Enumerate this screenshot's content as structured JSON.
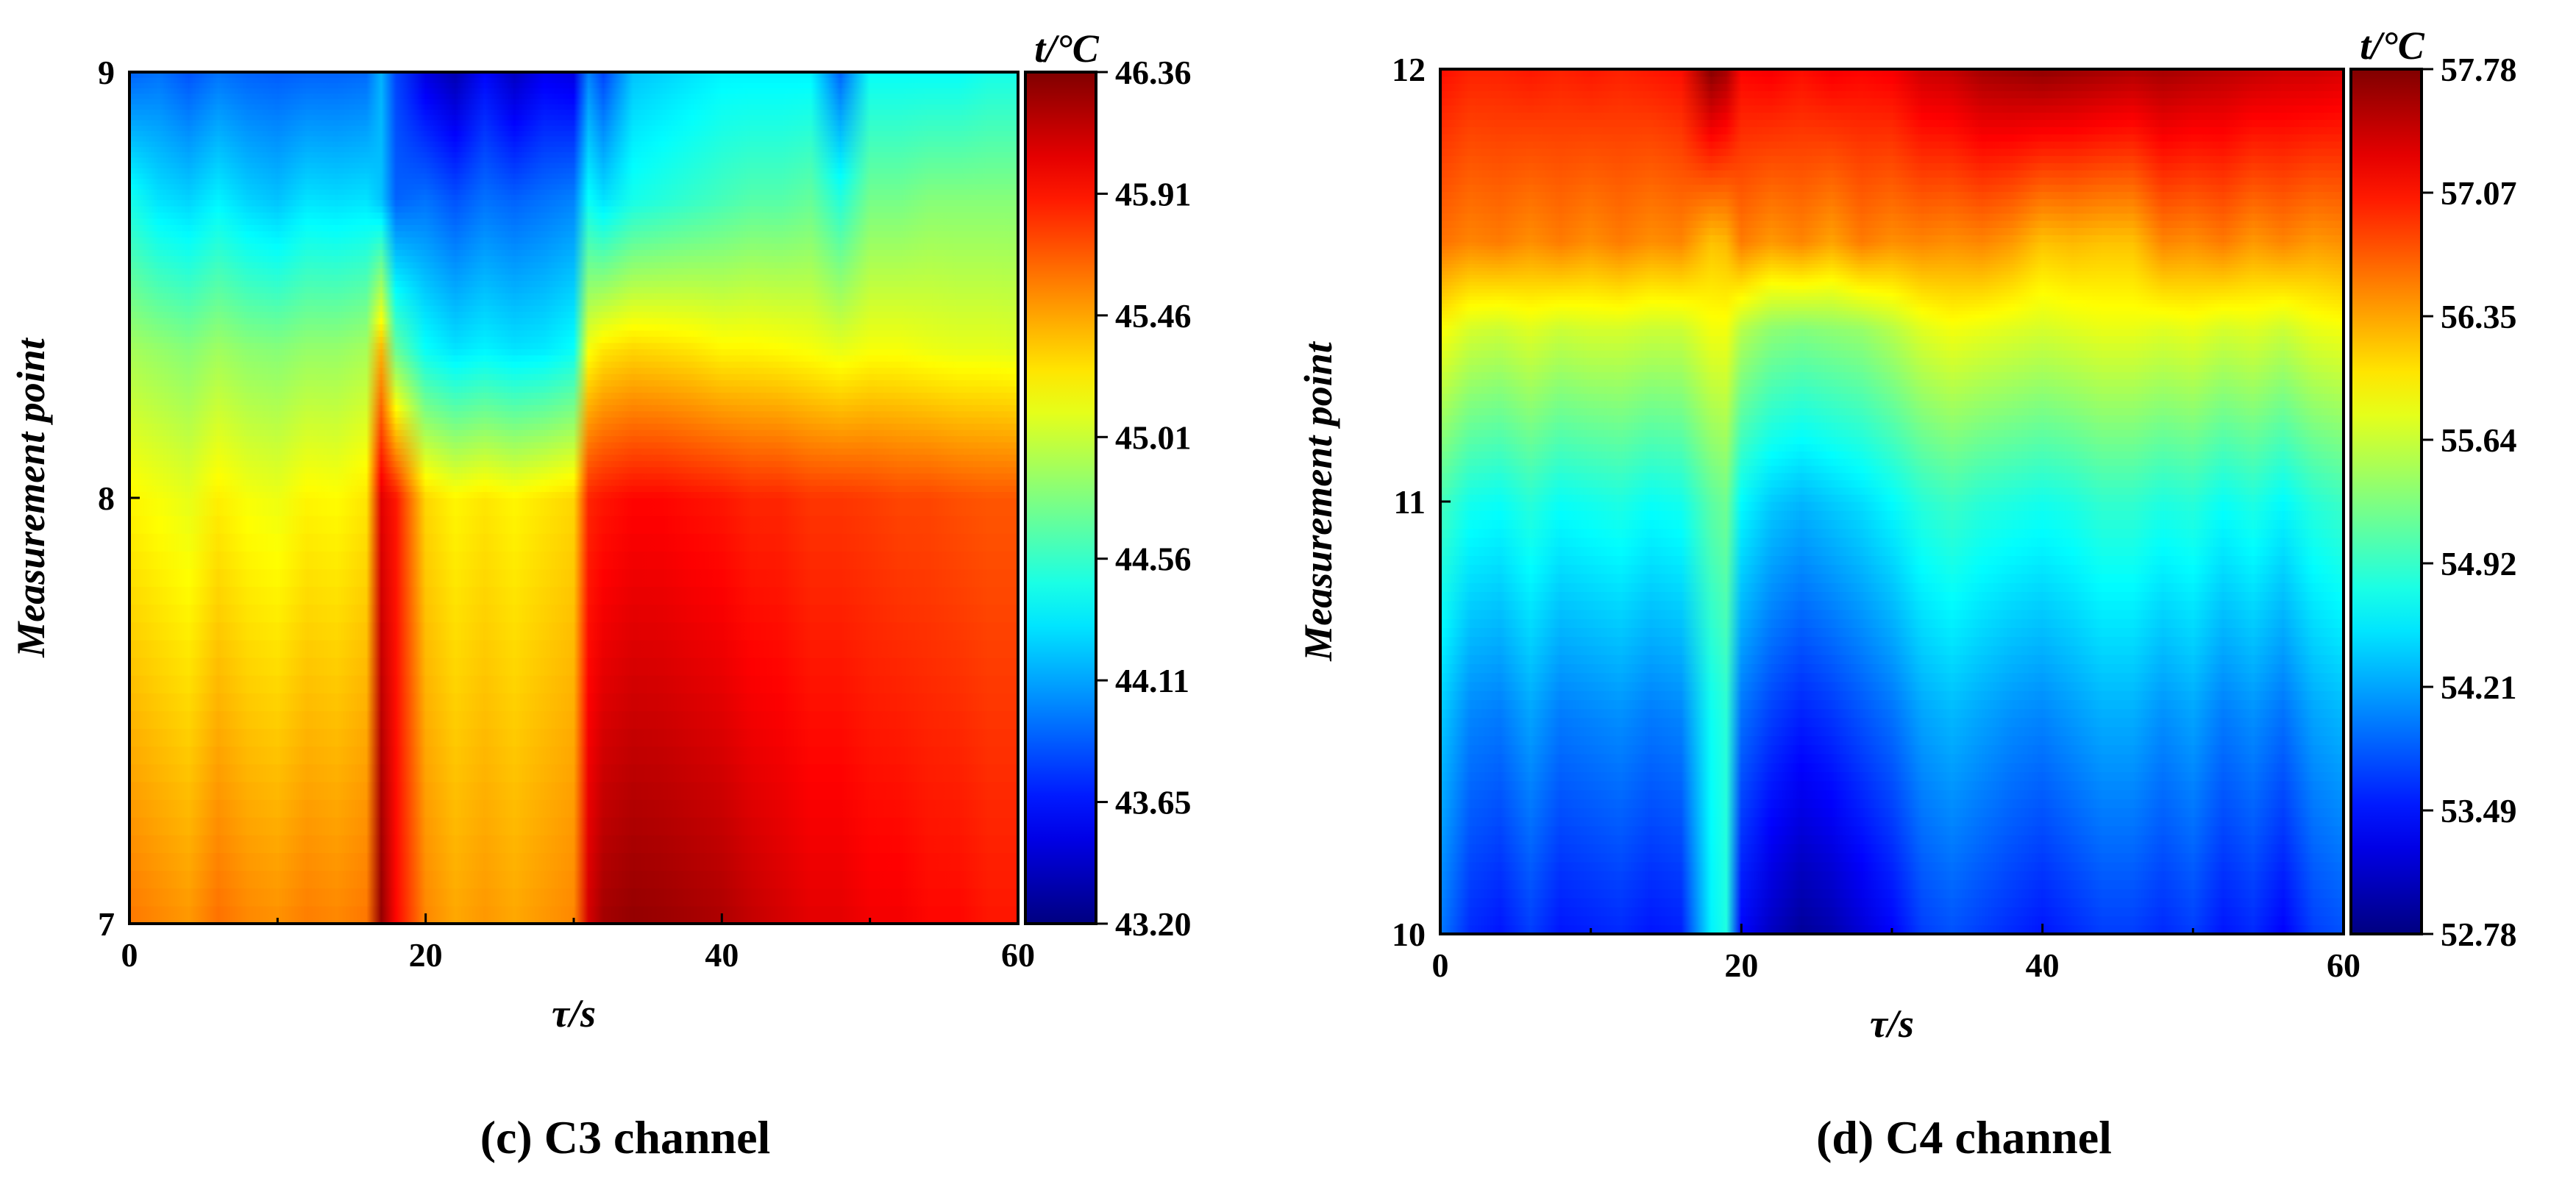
{
  "chart_data": [
    {
      "type": "heatmap",
      "panel": "c",
      "caption": "(c) C3 channel",
      "xlabel": "τ/s",
      "ylabel": "Measurement point",
      "colorbar_title": "t/°C",
      "xlim": [
        0,
        60
      ],
      "ylim": [
        7,
        9
      ],
      "x_ticks": [
        "0",
        "20",
        "40",
        "60"
      ],
      "y_ticks": [
        "7",
        "8",
        "9"
      ],
      "colorbar_ticks": [
        "46.36",
        "45.91",
        "45.46",
        "45.01",
        "44.56",
        "44.11",
        "43.65",
        "43.20"
      ],
      "vmin": 43.2,
      "vmax": 46.36,
      "x": [
        0,
        2,
        4,
        6,
        8,
        10,
        12,
        14,
        16,
        17,
        18,
        20,
        22,
        24,
        26,
        28,
        30,
        31,
        32,
        34,
        36,
        38,
        40,
        42,
        44,
        46,
        48,
        50,
        52,
        54,
        56,
        58,
        60
      ],
      "y": [
        7,
        8,
        8.35,
        8.7,
        9
      ],
      "values": [
        [
          45.6,
          45.55,
          45.5,
          45.62,
          45.55,
          45.52,
          45.58,
          45.55,
          45.6,
          46.3,
          45.95,
          45.55,
          45.45,
          45.5,
          45.45,
          45.5,
          45.55,
          46.1,
          46.25,
          46.3,
          46.28,
          46.25,
          46.22,
          46.15,
          46.1,
          46.05,
          46.05,
          46.0,
          46.0,
          45.95,
          45.95,
          45.9,
          45.9
        ],
        [
          45.2,
          45.15,
          45.1,
          45.22,
          45.15,
          45.12,
          45.2,
          45.18,
          45.25,
          46.05,
          45.9,
          45.3,
          45.2,
          45.25,
          45.2,
          45.25,
          45.3,
          45.85,
          45.9,
          45.95,
          45.95,
          45.92,
          45.9,
          45.85,
          45.85,
          45.8,
          45.8,
          45.78,
          45.75,
          45.75,
          45.72,
          45.7,
          45.7
        ],
        [
          44.9,
          44.85,
          44.8,
          44.88,
          44.82,
          44.8,
          44.85,
          44.85,
          44.9,
          45.4,
          44.7,
          44.4,
          44.3,
          44.35,
          44.3,
          44.32,
          44.4,
          45.15,
          45.25,
          45.3,
          45.28,
          45.25,
          45.2,
          45.2,
          45.18,
          45.15,
          45.1,
          45.15,
          45.15,
          45.12,
          45.1,
          45.1,
          45.08
        ],
        [
          44.45,
          44.3,
          44.25,
          44.35,
          44.25,
          44.2,
          44.3,
          44.28,
          44.3,
          44.2,
          43.9,
          43.95,
          43.85,
          43.95,
          43.9,
          43.95,
          44.0,
          44.4,
          44.3,
          44.45,
          44.5,
          44.55,
          44.6,
          44.65,
          44.65,
          44.7,
          44.5,
          44.75,
          44.75,
          44.8,
          44.8,
          44.8,
          44.8
        ],
        [
          43.9,
          43.95,
          43.85,
          43.95,
          43.9,
          43.88,
          43.9,
          43.9,
          43.92,
          44.15,
          43.8,
          43.5,
          43.35,
          43.6,
          43.4,
          43.55,
          43.5,
          44.0,
          43.8,
          44.2,
          44.25,
          44.3,
          44.35,
          44.35,
          44.35,
          44.35,
          43.9,
          44.4,
          44.4,
          44.4,
          44.4,
          44.45,
          44.45
        ]
      ]
    },
    {
      "type": "heatmap",
      "panel": "d",
      "caption": "(d) C4 channel",
      "xlabel": "τ/s",
      "ylabel": "Measurement point",
      "colorbar_title": "t/°C",
      "xlim": [
        0,
        60
      ],
      "ylim": [
        10,
        12
      ],
      "x_ticks": [
        "0",
        "20",
        "40",
        "60"
      ],
      "y_ticks": [
        "10",
        "11",
        "12"
      ],
      "colorbar_ticks": [
        "57.78",
        "57.07",
        "56.35",
        "55.64",
        "54.92",
        "54.21",
        "53.49",
        "52.78"
      ],
      "vmin": 52.78,
      "vmax": 57.78,
      "x": [
        0,
        2,
        4,
        6,
        8,
        10,
        12,
        14,
        16,
        18,
        19,
        20,
        22,
        24,
        26,
        28,
        30,
        32,
        34,
        36,
        38,
        40,
        42,
        44,
        46,
        48,
        50,
        52,
        54,
        56,
        58,
        60
      ],
      "y": [
        10,
        10.5,
        11,
        11.4,
        11.6,
        12
      ],
      "values": [
        [
          54.0,
          53.6,
          53.5,
          53.7,
          53.5,
          53.55,
          53.6,
          53.5,
          53.55,
          54.6,
          54.8,
          53.4,
          53.1,
          52.9,
          53.0,
          53.2,
          53.4,
          53.7,
          53.8,
          53.7,
          53.6,
          53.5,
          53.6,
          53.7,
          53.7,
          53.6,
          53.7,
          53.5,
          53.6,
          53.4,
          53.7,
          53.8
        ],
        [
          54.4,
          54.05,
          54.0,
          54.2,
          54.0,
          54.05,
          54.1,
          54.0,
          54.05,
          54.7,
          54.85,
          53.95,
          53.7,
          53.55,
          53.65,
          53.8,
          53.95,
          54.2,
          54.3,
          54.2,
          54.1,
          54.05,
          54.15,
          54.25,
          54.25,
          54.1,
          54.2,
          54.0,
          54.1,
          53.95,
          54.2,
          54.3
        ],
        [
          55.0,
          54.75,
          54.7,
          54.85,
          54.7,
          54.75,
          54.8,
          54.7,
          54.75,
          55.1,
          55.2,
          54.65,
          54.4,
          54.3,
          54.4,
          54.5,
          54.65,
          54.85,
          54.95,
          54.85,
          54.8,
          54.75,
          54.8,
          54.9,
          54.9,
          54.8,
          54.85,
          54.7,
          54.8,
          54.65,
          54.85,
          54.95
        ],
        [
          55.9,
          55.7,
          55.65,
          55.75,
          55.65,
          55.7,
          55.7,
          55.65,
          55.65,
          55.85,
          55.85,
          55.55,
          55.35,
          55.3,
          55.35,
          55.4,
          55.55,
          55.75,
          55.85,
          55.8,
          55.75,
          55.7,
          55.75,
          55.8,
          55.8,
          55.75,
          55.8,
          55.7,
          55.75,
          55.65,
          55.8,
          55.85
        ],
        [
          56.6,
          56.5,
          56.55,
          56.45,
          56.55,
          56.45,
          56.55,
          56.45,
          56.5,
          56.2,
          56.25,
          56.55,
          56.4,
          56.5,
          56.35,
          56.55,
          56.45,
          56.5,
          56.45,
          56.5,
          56.4,
          56.2,
          56.25,
          56.2,
          56.2,
          56.5,
          56.45,
          56.55,
          56.4,
          56.5,
          56.4,
          56.45
        ],
        [
          57.1,
          57.0,
          57.0,
          57.05,
          57.0,
          57.05,
          57.0,
          57.05,
          57.1,
          57.75,
          57.6,
          57.15,
          57.2,
          57.1,
          57.2,
          57.15,
          57.2,
          57.4,
          57.45,
          57.6,
          57.65,
          57.7,
          57.65,
          57.6,
          57.55,
          57.6,
          57.55,
          57.5,
          57.45,
          57.4,
          57.4,
          57.35
        ]
      ]
    }
  ]
}
